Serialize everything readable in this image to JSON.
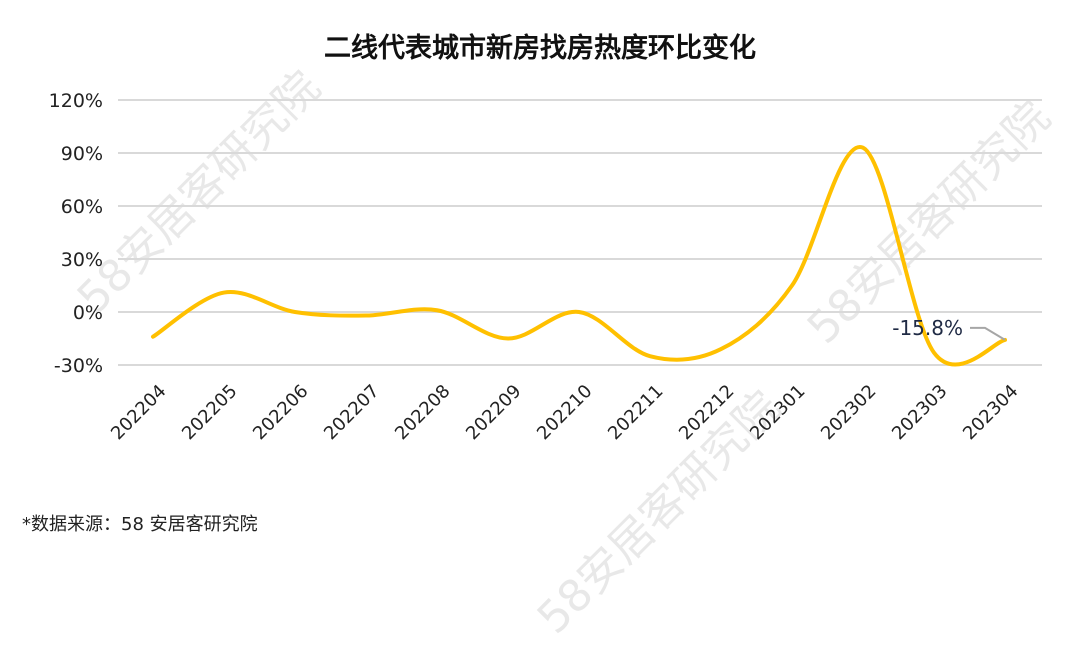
{
  "title": "二线代表城市新房找房热度环比变化",
  "source": "*数据来源：58 安居客研究院",
  "watermark": "58安居客研究院",
  "colors": {
    "line": "#FFC000",
    "grid": "#D9D9D9",
    "label_leader": "#A6A6A6"
  },
  "chart_data": {
    "type": "line",
    "title": "二线代表城市新房找房热度环比变化",
    "categories": [
      "202204",
      "202205",
      "202206",
      "202207",
      "202208",
      "202209",
      "202210",
      "202211",
      "202212",
      "202301",
      "202302",
      "202303",
      "202304"
    ],
    "series": [
      {
        "values": [
          -14,
          11,
          0,
          -2,
          1,
          -15,
          0,
          -25,
          -21,
          15,
          93,
          -23,
          -15.8
        ],
        "smooth": true
      }
    ],
    "yticks": [
      "120%",
      "90%",
      "60%",
      "30%",
      "0%",
      "-30%"
    ],
    "ylim": [
      -30,
      120
    ],
    "y_unit": "%",
    "grid": true,
    "annotation": {
      "category": "202304",
      "text": "-15.8%"
    }
  }
}
